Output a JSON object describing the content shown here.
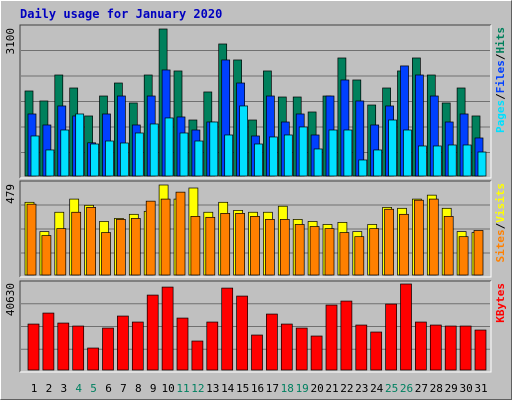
{
  "chart_data": [
    {
      "type": "bar",
      "title": "Daily usage for January 2020",
      "ylim": [
        0,
        3100
      ],
      "yticks": [
        3100
      ],
      "legend_separator": "/",
      "series": [
        {
          "name": "Hits",
          "color": "#00805c",
          "values": [
            1793,
            1582,
            2130,
            1856,
            1266,
            1687,
            1961,
            1540,
            2130,
            3100,
            2215,
            1181,
            1772,
            2784,
            2447,
            1181,
            2215,
            1666,
            1666,
            1350,
            1687,
            2489,
            2025,
            1497,
            1856,
            2215,
            2489,
            2130,
            1540,
            1856,
            1266
          ]
        },
        {
          "name": "Files",
          "color": "#0040ff",
          "values": [
            1308,
            1076,
            1477,
            1266,
            700,
            1308,
            1687,
            1076,
            1687,
            2236,
            1245,
            970,
            1139,
            2447,
            1961,
            844,
            1687,
            1139,
            1308,
            865,
            1687,
            2025,
            1582,
            1076,
            1477,
            2321,
            2130,
            1687,
            1139,
            1308,
            802
          ]
        },
        {
          "name": "Pages",
          "color": "#00e0ff",
          "values": [
            844,
            549,
            970,
            1308,
            675,
            738,
            696,
            907,
            1097,
            1224,
            907,
            738,
            1139,
            865,
            1477,
            675,
            823,
            865,
            1034,
            570,
            970,
            970,
            338,
            549,
            1181,
            970,
            633,
            633,
            654,
            654,
            506
          ]
        }
      ]
    },
    {
      "type": "bar",
      "ylim": [
        0,
        479
      ],
      "yticks": [
        479
      ],
      "legend_separator": "/",
      "series": [
        {
          "name": "Visits",
          "color": "#ffff00",
          "values": [
            387,
            231,
            334,
            404,
            371,
            285,
            301,
            323,
            339,
            479,
            404,
            463,
            334,
            387,
            344,
            334,
            334,
            366,
            296,
            285,
            269,
            280,
            231,
            269,
            360,
            355,
            404,
            425,
            355,
            231,
            226
          ]
        },
        {
          "name": "Sites",
          "color": "#ff8000",
          "values": [
            377,
            210,
            247,
            334,
            360,
            226,
            296,
            301,
            393,
            404,
            441,
            312,
            307,
            328,
            328,
            312,
            296,
            296,
            269,
            258,
            247,
            226,
            204,
            247,
            350,
            323,
            398,
            404,
            312,
            204,
            237
          ]
        }
      ]
    },
    {
      "type": "bar",
      "ylim": [
        0,
        40630
      ],
      "yticks": [
        40630
      ],
      "categories": [
        "1",
        "2",
        "3",
        "4",
        "5",
        "6",
        "7",
        "8",
        "9",
        "10",
        "11",
        "12",
        "13",
        "14",
        "15",
        "16",
        "17",
        "18",
        "19",
        "20",
        "21",
        "22",
        "23",
        "24",
        "25",
        "26",
        "27",
        "28",
        "29",
        "30",
        "31"
      ],
      "category_colors": [
        "#000000",
        "#000000",
        "#000000",
        "#008060",
        "#008060",
        "#000000",
        "#000000",
        "#000000",
        "#000000",
        "#000000",
        "#008060",
        "#008060",
        "#000000",
        "#000000",
        "#000000",
        "#000000",
        "#000000",
        "#008060",
        "#008060",
        "#000000",
        "#000000",
        "#000000",
        "#000000",
        "#000000",
        "#008060",
        "#008060",
        "#000000",
        "#000000",
        "#000000",
        "#000000",
        "#000000"
      ],
      "series": [
        {
          "name": "KBytes",
          "color": "#ff0000",
          "values": [
            21710,
            26900,
            22180,
            20770,
            10380,
            19820,
            25490,
            22660,
            35400,
            39180,
            24540,
            13690,
            22660,
            38700,
            34930,
            16520,
            26430,
            21710,
            19820,
            16050,
            30680,
            32570,
            21240,
            17940,
            31150,
            40630,
            22660,
            21240,
            20770,
            20770,
            18880
          ]
        }
      ]
    }
  ]
}
